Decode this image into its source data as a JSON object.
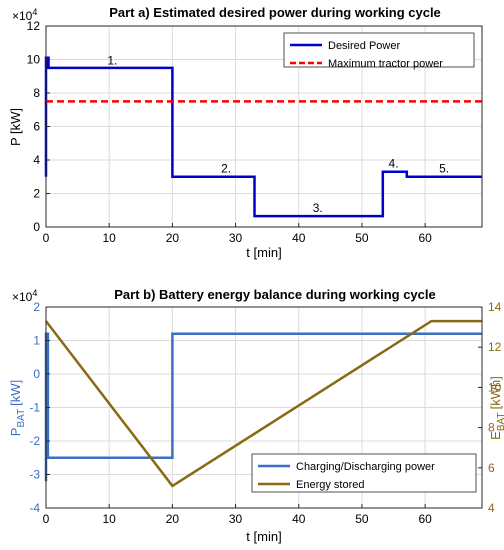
{
  "chart_data": [
    {
      "type": "line",
      "title": "Part a) Estimated desired power during working cycle",
      "xlabel": "t [min]",
      "ylabel": "P [kW]",
      "y_multiplier": "×10",
      "y_multiplier_exp": "4",
      "xlim": [
        0,
        69
      ],
      "ylim": [
        0,
        12
      ],
      "xticks": [
        0,
        10,
        20,
        30,
        40,
        50,
        60
      ],
      "yticks": [
        0,
        2,
        4,
        6,
        8,
        10,
        12
      ],
      "grid": true,
      "legend_position": "top-right",
      "series": [
        {
          "name": "Desired Power",
          "color": "#0000cc",
          "style": "solid",
          "x": [
            0,
            0,
            0.4,
            0.4,
            20,
            20,
            33,
            33,
            53.3,
            53.3,
            57.1,
            57.1,
            69
          ],
          "y": [
            3.0,
            10.1,
            10.1,
            9.5,
            9.5,
            3.0,
            3.0,
            0.65,
            0.65,
            3.3,
            3.3,
            3.0,
            3.0
          ]
        },
        {
          "name": "Maximum tractor power",
          "color": "#ff0000",
          "style": "dashed",
          "x": [
            0,
            69
          ],
          "y": [
            7.5,
            7.5
          ]
        }
      ],
      "annotations": [
        {
          "text": "1.",
          "x": 10.5,
          "y": 9.7
        },
        {
          "text": "2.",
          "x": 28.5,
          "y": 3.25
        },
        {
          "text": "3.",
          "x": 43,
          "y": 0.9
        },
        {
          "text": "4.",
          "x": 55,
          "y": 3.55
        },
        {
          "text": "5.",
          "x": 63,
          "y": 3.25
        }
      ]
    },
    {
      "type": "line",
      "title": "Part b) Battery energy balance during working cycle",
      "xlabel": "t [min]",
      "ylabel_left": "P",
      "ylabel_left_sub": "BAT",
      "ylabel_left_unit": "[kW]",
      "ylabel_right": "E",
      "ylabel_right_sub": "BAT",
      "ylabel_right_unit": "[kWh]",
      "y_multiplier": "×10",
      "y_multiplier_exp": "4",
      "xlim": [
        0,
        69
      ],
      "ylim_left": [
        -4,
        2
      ],
      "ylim_right": [
        4,
        14
      ],
      "xticks": [
        0,
        10,
        20,
        30,
        40,
        50,
        60
      ],
      "yticks_left": [
        -4,
        -3,
        -2,
        -1,
        0,
        1,
        2
      ],
      "yticks_right": [
        4,
        6,
        8,
        10,
        12,
        14
      ],
      "grid": true,
      "legend_position": "bottom-right",
      "series": [
        {
          "name": "Charging/Discharging power",
          "color": "#3a6fc4",
          "axis": "left",
          "x": [
            0,
            0,
            0.3,
            0.3,
            20,
            20,
            69
          ],
          "y": [
            -3.2,
            1.2,
            1.2,
            -2.5,
            -2.5,
            1.2,
            1.2
          ]
        },
        {
          "name": "Energy stored",
          "color": "#8b6914",
          "axis": "right",
          "x": [
            0,
            20,
            61,
            69
          ],
          "y": [
            13.3,
            5.1,
            13.3,
            13.3
          ]
        }
      ]
    }
  ]
}
